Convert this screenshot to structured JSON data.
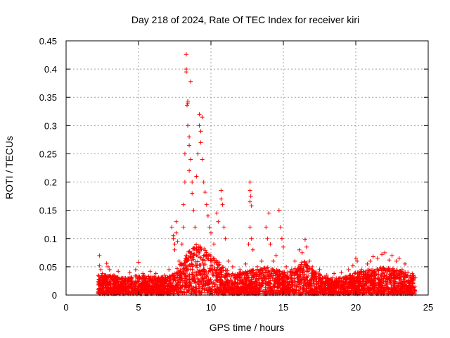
{
  "chart_data": {
    "type": "scatter",
    "title": "Day 218 of 2024, Rate Of TEC Index for receiver kiri",
    "xlabel": "GPS time / hours",
    "ylabel": "ROTI / TECUs",
    "xlim": [
      0,
      25
    ],
    "ylim": [
      0,
      0.45
    ],
    "xticks": [
      0,
      5,
      10,
      15,
      20,
      25
    ],
    "xtick_labels": [
      "0",
      "5",
      "10",
      "15",
      "20",
      "25"
    ],
    "yticks": [
      0,
      0.05,
      0.1,
      0.15,
      0.2,
      0.25,
      0.3,
      0.35,
      0.4,
      0.45
    ],
    "ytick_labels": [
      "0",
      "0.05",
      "0.1",
      "0.15",
      "0.2",
      "0.25",
      "0.3",
      "0.35",
      "0.4",
      "0.45"
    ],
    "grid": true,
    "marker": "+",
    "color": "#ff0000",
    "series": [
      {
        "name": "ROTI",
        "points": [
          [
            2.3,
            0.07
          ],
          [
            2.3,
            0.052
          ],
          [
            2.4,
            0.045
          ],
          [
            2.5,
            0.038
          ],
          [
            2.8,
            0.056
          ],
          [
            2.9,
            0.05
          ],
          [
            3.0,
            0.045
          ],
          [
            3.3,
            0.035
          ],
          [
            3.6,
            0.042
          ],
          [
            4.0,
            0.03
          ],
          [
            4.4,
            0.04
          ],
          [
            4.8,
            0.045
          ],
          [
            5.0,
            0.058
          ],
          [
            5.3,
            0.038
          ],
          [
            5.8,
            0.042
          ],
          [
            6.2,
            0.038
          ],
          [
            6.8,
            0.035
          ],
          [
            7.1,
            0.045
          ],
          [
            7.3,
            0.12
          ],
          [
            7.4,
            0.105
          ],
          [
            7.4,
            0.1
          ],
          [
            7.5,
            0.09
          ],
          [
            7.5,
            0.08
          ],
          [
            7.6,
            0.13
          ],
          [
            7.6,
            0.11
          ],
          [
            7.7,
            0.095
          ],
          [
            7.8,
            0.06
          ],
          [
            8.0,
            0.09
          ],
          [
            8.1,
            0.12
          ],
          [
            8.1,
            0.16
          ],
          [
            8.2,
            0.2
          ],
          [
            8.2,
            0.25
          ],
          [
            8.3,
            0.426
          ],
          [
            8.3,
            0.4
          ],
          [
            8.3,
            0.395
          ],
          [
            8.4,
            0.343
          ],
          [
            8.4,
            0.34
          ],
          [
            8.35,
            0.336
          ],
          [
            8.4,
            0.3
          ],
          [
            8.5,
            0.28
          ],
          [
            8.5,
            0.265
          ],
          [
            8.5,
            0.22
          ],
          [
            8.6,
            0.378
          ],
          [
            8.6,
            0.24
          ],
          [
            8.7,
            0.2
          ],
          [
            8.7,
            0.18
          ],
          [
            8.8,
            0.15
          ],
          [
            8.9,
            0.12
          ],
          [
            9.0,
            0.21
          ],
          [
            9.1,
            0.25
          ],
          [
            9.2,
            0.3
          ],
          [
            9.2,
            0.32
          ],
          [
            9.3,
            0.29
          ],
          [
            9.3,
            0.27
          ],
          [
            9.4,
            0.315
          ],
          [
            9.4,
            0.24
          ],
          [
            9.5,
            0.2
          ],
          [
            9.6,
            0.182
          ],
          [
            9.7,
            0.16
          ],
          [
            9.8,
            0.14
          ],
          [
            9.9,
            0.12
          ],
          [
            10.0,
            0.11
          ],
          [
            10.2,
            0.09
          ],
          [
            10.4,
            0.145
          ],
          [
            10.5,
            0.13
          ],
          [
            10.7,
            0.185
          ],
          [
            10.7,
            0.17
          ],
          [
            10.8,
            0.16
          ],
          [
            10.9,
            0.12
          ],
          [
            11.0,
            0.1
          ],
          [
            11.2,
            0.06
          ],
          [
            11.5,
            0.05
          ],
          [
            12.0,
            0.045
          ],
          [
            12.4,
            0.055
          ],
          [
            12.6,
            0.09
          ],
          [
            12.7,
            0.2
          ],
          [
            12.7,
            0.185
          ],
          [
            12.75,
            0.175
          ],
          [
            12.7,
            0.165
          ],
          [
            12.8,
            0.158
          ],
          [
            12.7,
            0.12
          ],
          [
            12.8,
            0.1
          ],
          [
            12.9,
            0.08
          ],
          [
            13.2,
            0.05
          ],
          [
            13.5,
            0.06
          ],
          [
            13.8,
            0.12
          ],
          [
            13.9,
            0.1
          ],
          [
            14.0,
            0.145
          ],
          [
            14.1,
            0.09
          ],
          [
            14.3,
            0.06
          ],
          [
            14.5,
            0.07
          ],
          [
            14.7,
            0.15
          ],
          [
            14.8,
            0.12
          ],
          [
            14.9,
            0.1
          ],
          [
            15.0,
            0.085
          ],
          [
            15.2,
            0.05
          ],
          [
            15.8,
            0.06
          ],
          [
            16.1,
            0.08
          ],
          [
            16.3,
            0.075
          ],
          [
            16.5,
            0.098
          ],
          [
            16.6,
            0.085
          ],
          [
            16.8,
            0.06
          ],
          [
            17.0,
            0.05
          ],
          [
            17.5,
            0.045
          ],
          [
            18.0,
            0.035
          ],
          [
            18.5,
            0.038
          ],
          [
            19.0,
            0.04
          ],
          [
            19.5,
            0.045
          ],
          [
            19.8,
            0.052
          ],
          [
            20.0,
            0.065
          ],
          [
            20.1,
            0.06
          ],
          [
            20.4,
            0.045
          ],
          [
            20.8,
            0.055
          ],
          [
            21.0,
            0.06
          ],
          [
            21.2,
            0.068
          ],
          [
            21.5,
            0.065
          ],
          [
            21.8,
            0.072
          ],
          [
            22.0,
            0.075
          ],
          [
            22.3,
            0.062
          ],
          [
            22.5,
            0.07
          ],
          [
            22.8,
            0.06
          ],
          [
            23.0,
            0.065
          ],
          [
            23.2,
            0.045
          ],
          [
            23.4,
            0.055
          ],
          [
            23.6,
            0.04
          ],
          [
            23.9,
            0.038
          ],
          [
            24.0,
            0.035
          ]
        ],
        "dense_band": {
          "x_range": [
            2.2,
            24.1
          ],
          "baseline_envelope": [
            [
              2.2,
              0.035
            ],
            [
              3.0,
              0.035
            ],
            [
              4.0,
              0.03
            ],
            [
              5.0,
              0.035
            ],
            [
              6.0,
              0.033
            ],
            [
              7.0,
              0.032
            ],
            [
              7.5,
              0.04
            ],
            [
              8.0,
              0.06
            ],
            [
              8.5,
              0.08
            ],
            [
              9.0,
              0.09
            ],
            [
              9.5,
              0.085
            ],
            [
              10.0,
              0.07
            ],
            [
              10.5,
              0.06
            ],
            [
              11.0,
              0.045
            ],
            [
              12.0,
              0.04
            ],
            [
              13.0,
              0.045
            ],
            [
              14.0,
              0.05
            ],
            [
              15.0,
              0.04
            ],
            [
              16.0,
              0.05
            ],
            [
              16.5,
              0.065
            ],
            [
              17.0,
              0.045
            ],
            [
              18.0,
              0.03
            ],
            [
              19.0,
              0.032
            ],
            [
              20.0,
              0.04
            ],
            [
              21.0,
              0.045
            ],
            [
              22.0,
              0.05
            ],
            [
              23.0,
              0.045
            ],
            [
              24.1,
              0.035
            ]
          ],
          "min_value": 0.002,
          "points_per_hour": 160
        }
      }
    ]
  }
}
